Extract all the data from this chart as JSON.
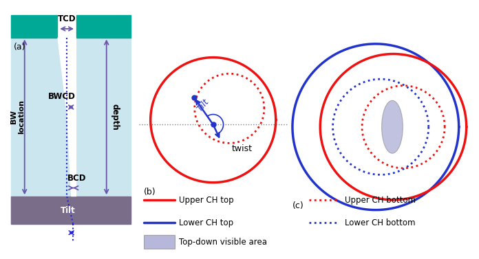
{
  "fig_width": 6.96,
  "fig_height": 3.77,
  "bg_color": "#ffffff",
  "panel_a": {
    "light_blue": "#cce6f0",
    "teal": "#00a896",
    "gray_purple": "#7a6d8a",
    "arrow_color": "#6655aa",
    "dashed_color": "#2222dd",
    "label_color": "#000000",
    "tcd_label": "TCD",
    "bwcd_label": "BWCD",
    "bcd_label": "BCD",
    "depth_label": "depth",
    "bw_label": "BW\nlocation",
    "tilt_label": "Tilt"
  },
  "panel_b": {
    "red": "#ee1111",
    "blue": "#2233cc",
    "tilt_label": "Tilt",
    "twist_label": "twist"
  },
  "panel_c": {
    "red": "#ee1111",
    "blue": "#2233cc",
    "fill_color": "#9999cc",
    "fill_alpha": 0.6
  },
  "legend": {
    "upper_ch_top": "Upper CH top",
    "upper_ch_bottom": "Upper CH bottom",
    "lower_ch_top": "Lower CH top",
    "lower_ch_bottom": "Lower CH bottom",
    "visible_area": "Top-down visible area",
    "red": "#ee1111",
    "blue": "#2233cc",
    "fill_color": "#9999cc"
  }
}
